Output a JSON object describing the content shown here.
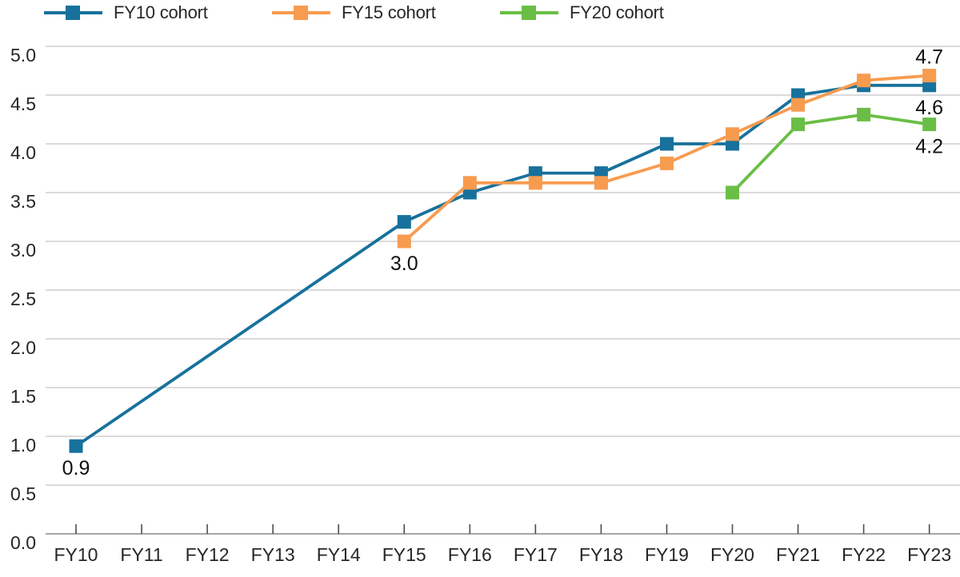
{
  "chart_data": {
    "type": "line",
    "title": "",
    "xlabel": "",
    "ylabel": "",
    "categories": [
      "FY10",
      "FY11",
      "FY12",
      "FY13",
      "FY14",
      "FY15",
      "FY16",
      "FY17",
      "FY18",
      "FY19",
      "FY20",
      "FY21",
      "FY22",
      "FY23"
    ],
    "ylim": [
      0.0,
      5.0
    ],
    "ytick_labels": [
      "0.0",
      "0.5",
      "1.0",
      "1.5",
      "2.0",
      "2.5",
      "3.0",
      "3.5",
      "4.0",
      "4.5",
      "5.0"
    ],
    "grid": true,
    "legend_position": "top-left",
    "colors": {
      "grid": "#c5c5c5",
      "axis": "#a6a6a6",
      "tick": "#4d4d4d",
      "tick_label": "#262626",
      "data_label": "#111111"
    },
    "series": [
      {
        "name": "FY10 cohort",
        "color": "#17719c",
        "points": [
          {
            "x": "FY10",
            "y": 0.9,
            "label": "0.9",
            "label_pos": "below"
          },
          {
            "x": "FY15",
            "y": 3.2
          },
          {
            "x": "FY16",
            "y": 3.5
          },
          {
            "x": "FY17",
            "y": 3.7
          },
          {
            "x": "FY18",
            "y": 3.7
          },
          {
            "x": "FY19",
            "y": 4.0
          },
          {
            "x": "FY20",
            "y": 4.0
          },
          {
            "x": "FY21",
            "y": 4.5
          },
          {
            "x": "FY22",
            "y": 4.6
          },
          {
            "x": "FY23",
            "y": 4.6,
            "label": "4.6",
            "label_pos": "below"
          }
        ]
      },
      {
        "name": "FY15 cohort",
        "color": "#f79b4f",
        "points": [
          {
            "x": "FY15",
            "y": 3.0,
            "label": "3.0",
            "label_pos": "below"
          },
          {
            "x": "FY16",
            "y": 3.6
          },
          {
            "x": "FY17",
            "y": 3.6
          },
          {
            "x": "FY18",
            "y": 3.6
          },
          {
            "x": "FY19",
            "y": 3.8
          },
          {
            "x": "FY20",
            "y": 4.1
          },
          {
            "x": "FY21",
            "y": 4.4
          },
          {
            "x": "FY22",
            "y": 4.65
          },
          {
            "x": "FY23",
            "y": 4.7,
            "label": "4.7",
            "label_pos": "above"
          }
        ]
      },
      {
        "name": "FY20 cohort",
        "color": "#6abe46",
        "points": [
          {
            "x": "FY20",
            "y": 3.5
          },
          {
            "x": "FY21",
            "y": 4.2
          },
          {
            "x": "FY22",
            "y": 4.3
          },
          {
            "x": "FY23",
            "y": 4.2,
            "label": "4.2",
            "label_pos": "below"
          }
        ]
      }
    ]
  }
}
